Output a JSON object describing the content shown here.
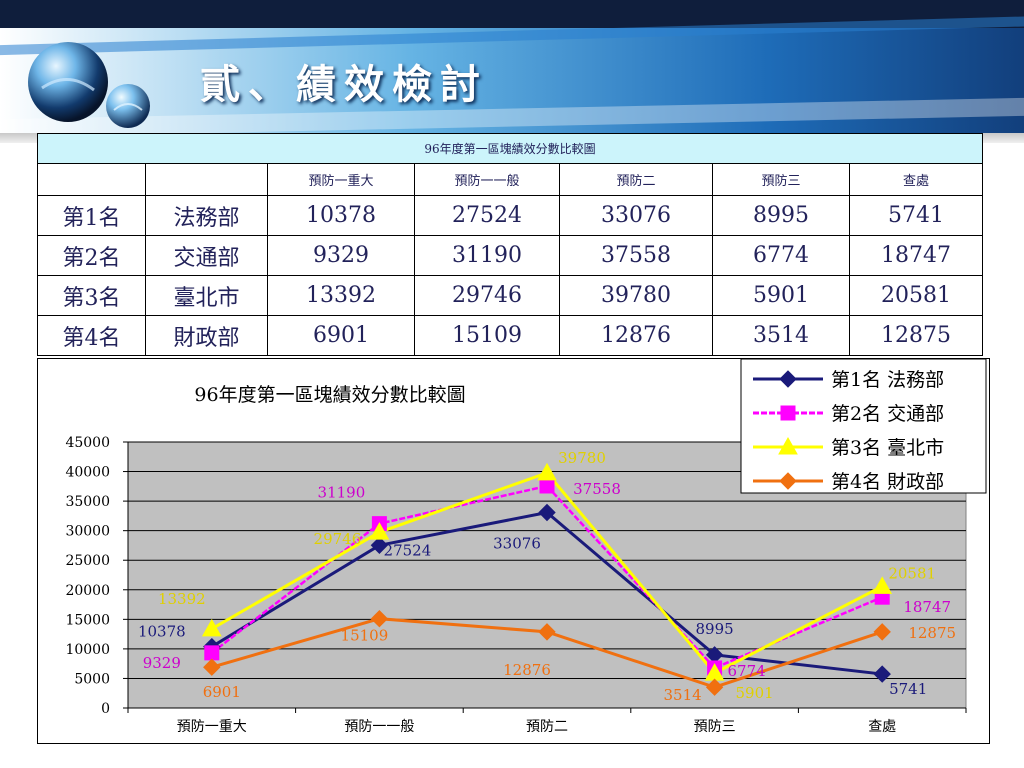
{
  "slide": {
    "title": "貳、績效檢討"
  },
  "table": {
    "caption": "96年度第一區塊績效分數比較圖",
    "headers": [
      "",
      "",
      "預防一重大",
      "預防一一般",
      "預防二",
      "預防三",
      "查處"
    ],
    "rows": [
      [
        "第1名",
        "法務部",
        "10378",
        "27524",
        "33076",
        "8995",
        "5741"
      ],
      [
        "第2名",
        "交通部",
        "9329",
        "31190",
        "37558",
        "6774",
        "18747"
      ],
      [
        "第3名",
        "臺北市",
        "13392",
        "29746",
        "39780",
        "5901",
        "20581"
      ],
      [
        "第4名",
        "財政部",
        "6901",
        "15109",
        "12876",
        "3514",
        "12875"
      ]
    ]
  },
  "chart_data": {
    "type": "line",
    "title": "96年度第一區塊績效分數比較圖",
    "categories": [
      "預防一重大",
      "預防一一般",
      "預防二",
      "預防三",
      "查處"
    ],
    "ylim": [
      0,
      45000
    ],
    "yticks": [
      0,
      5000,
      10000,
      15000,
      20000,
      25000,
      30000,
      35000,
      40000,
      45000
    ],
    "grid": true,
    "legend_position": "top-right",
    "series": [
      {
        "name": "第1名 法務部",
        "values": [
          10378,
          27524,
          33076,
          8995,
          5741
        ],
        "color": "#1a1a7a",
        "marker": "diamond"
      },
      {
        "name": "第2名 交通部",
        "values": [
          9329,
          31190,
          37558,
          6774,
          18747
        ],
        "color": "#ff00ff",
        "marker": "square"
      },
      {
        "name": "第3名 臺北市",
        "values": [
          13392,
          29746,
          39780,
          5901,
          20581
        ],
        "color": "#ffff00",
        "marker": "triangle"
      },
      {
        "name": "第4名 財政部",
        "values": [
          6901,
          15109,
          12876,
          3514,
          12875
        ],
        "color": "#f07010",
        "marker": "diamond"
      }
    ]
  }
}
